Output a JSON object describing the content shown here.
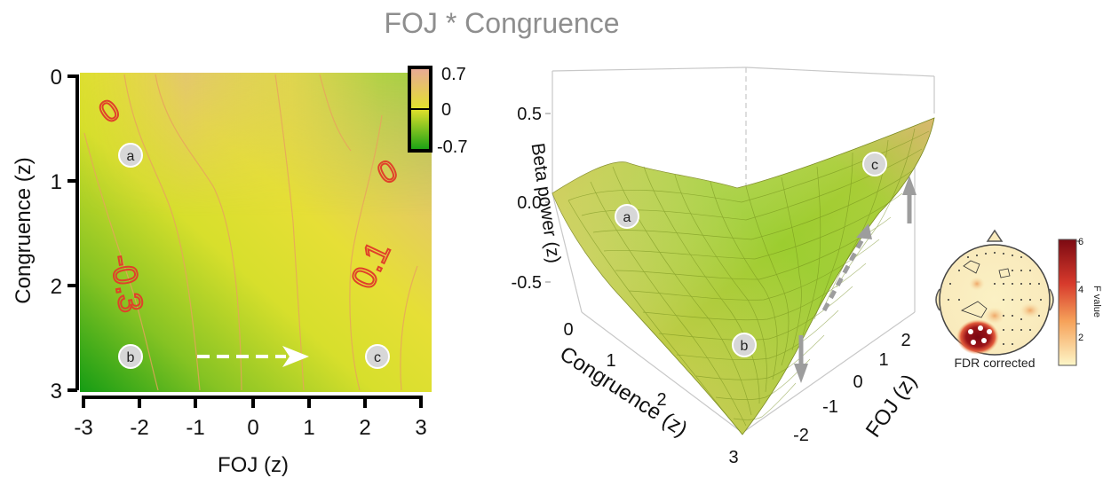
{
  "title": "FOJ * Congruence",
  "chart_data": [
    {
      "type": "heatmap",
      "xlabel": "FOJ (z)",
      "ylabel": "Congruence (z)",
      "x_ticks": [
        "-3",
        "-2",
        "-1",
        "0",
        "1",
        "2",
        "3"
      ],
      "y_ticks": [
        "0",
        "1",
        "2",
        "3"
      ],
      "xlim": [
        -3,
        3
      ],
      "ylim": [
        0,
        3
      ],
      "y_reversed": true,
      "colorbar": {
        "ticks": [
          "0.7",
          "0",
          "-0.7"
        ],
        "range": [
          -0.7,
          0.7
        ]
      },
      "colors": {
        "low": "#1fa51a",
        "mid": "#e3e12c",
        "high": "#e6ab94"
      },
      "contour_labels": [
        "0",
        "0",
        "-0.3",
        "0.1"
      ],
      "markers": [
        {
          "label": "a",
          "foj": -2.3,
          "congruence": 0.75
        },
        {
          "label": "b",
          "foj": -2.3,
          "congruence": 2.7
        },
        {
          "label": "c",
          "foj": 2.3,
          "congruence": 2.7
        }
      ],
      "arrow": {
        "from_foj": -1.0,
        "to_foj": 1.0,
        "congruence": 2.7
      }
    },
    {
      "type": "surface",
      "zlabel": "Beta power (z)",
      "xlabel": "Congruence (z)",
      "ylabel": "FOJ (z)",
      "z_ticks": [
        "0.5",
        "0.0",
        "-0.5"
      ],
      "congruence_ticks": [
        "0",
        "1",
        "2",
        "3"
      ],
      "foj_ticks": [
        "-2",
        "-1",
        "0",
        "1",
        "2"
      ],
      "markers": [
        "a",
        "b",
        "c"
      ]
    }
  ],
  "topomap": {
    "caption": "FDR corrected",
    "colorbar_label": "F value",
    "colorbar_ticks": [
      "6",
      "4",
      "2"
    ],
    "range": [
      0,
      6
    ],
    "colors": {
      "low": "#fdf6c8",
      "mid": "#e6503a",
      "high": "#7c0a12"
    }
  }
}
